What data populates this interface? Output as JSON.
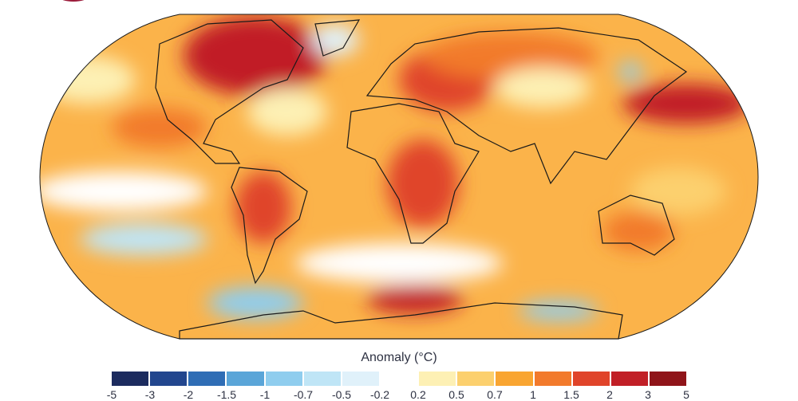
{
  "legend": {
    "title": "Anomaly (°C)",
    "labels": [
      "-5",
      "-3",
      "-2",
      "-1.5",
      "-1",
      "-0.7",
      "-0.5",
      "-0.2",
      "0.2",
      "0.5",
      "0.7",
      "1",
      "1.5",
      "2",
      "3",
      "5"
    ],
    "colors": [
      "#1c2b5e",
      "#22468e",
      "#2f6db5",
      "#5aa5d8",
      "#8fcdee",
      "#bfe5f6",
      "#e0f1fa",
      "#ffffff",
      "#fdf0b4",
      "#fcd06e",
      "#f9a531",
      "#f27a2c",
      "#e0442a",
      "#c11f26",
      "#8f1419"
    ]
  },
  "map": {
    "ocean_base_color": "#fbb34a",
    "outline_color": "#1a1a1a"
  }
}
